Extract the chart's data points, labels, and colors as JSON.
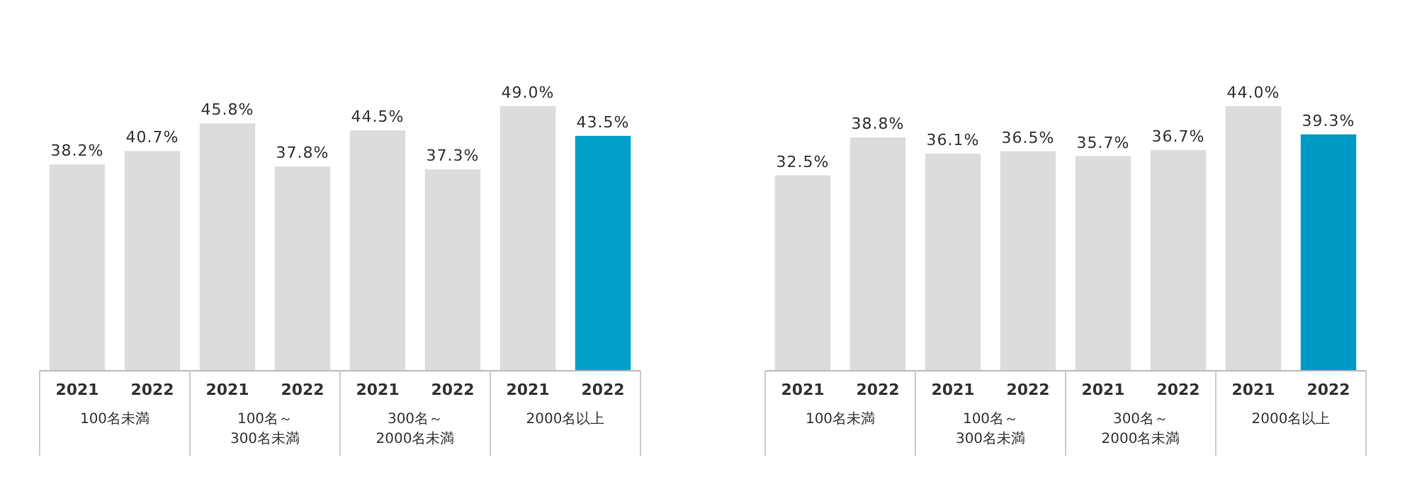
{
  "chart_data": [
    {
      "type": "bar",
      "categories": [
        "2021",
        "2022",
        "2021",
        "2022",
        "2021",
        "2022",
        "2021",
        "2022"
      ],
      "values": [
        38.2,
        40.7,
        45.8,
        37.8,
        44.5,
        37.3,
        49.0,
        43.5
      ],
      "value_labels": [
        "38.2%",
        "40.7%",
        "45.8%",
        "37.8%",
        "44.5%",
        "37.3%",
        "49.0%",
        "43.5%"
      ],
      "colors": [
        "#dcdcdc",
        "#dcdcdc",
        "#dcdcdc",
        "#dcdcdc",
        "#dcdcdc",
        "#dcdcdc",
        "#dcdcdc",
        "#00a0c8"
      ],
      "annotations": [
        "100名未満",
        "100名～300名未満",
        "300名～2000名未満",
        "2000名以上"
      ]
    },
    {
      "type": "bar",
      "categories": [
        "2021",
        "2022",
        "2021",
        "2022",
        "2021",
        "2022",
        "2021",
        "2022"
      ],
      "values": [
        32.5,
        38.8,
        36.1,
        36.5,
        35.7,
        36.7,
        44.0,
        39.3
      ],
      "value_labels": [
        "32.5%",
        "38.8%",
        "36.1%",
        "36.5%",
        "35.7%",
        "36.7%",
        "44.0%",
        "39.3%"
      ],
      "colors": [
        "#dcdcdc",
        "#dcdcdc",
        "#dcdcdc",
        "#dcdcdc",
        "#dcdcdc",
        "#dcdcdc",
        "#dcdcdc",
        "#0099c6"
      ],
      "annotations": [
        "100名未満",
        "100名～300名未満",
        "300名～2000名未満",
        "2000名以上"
      ]
    }
  ]
}
